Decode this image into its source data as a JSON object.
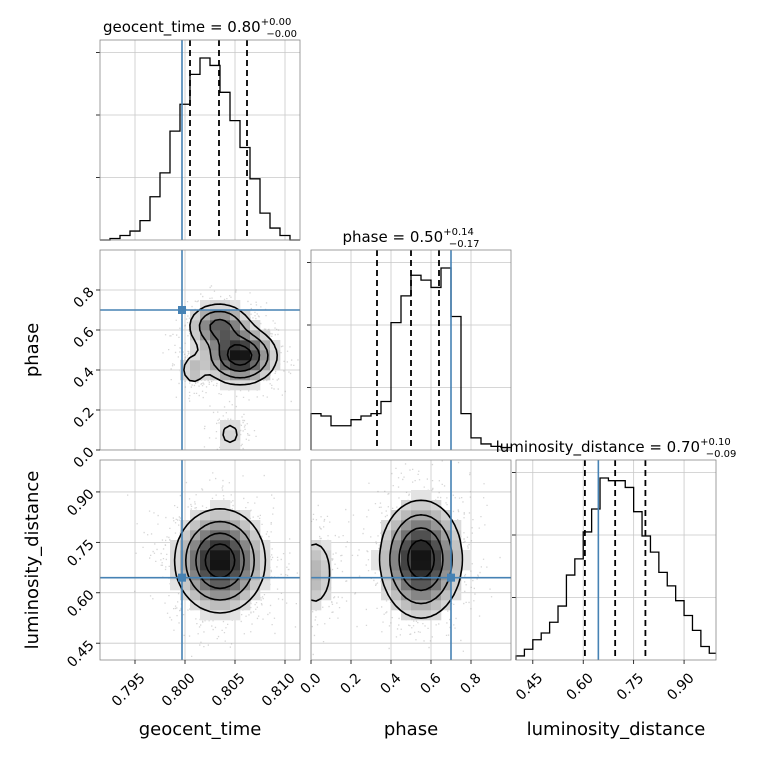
{
  "chart_data": {
    "type": "corner",
    "truths": {
      "geocent_time": 0.7997,
      "phase": 0.7,
      "luminosity_distance": 0.645
    },
    "axes": {
      "geocent_time": {
        "label": "geocent_time",
        "range": [
          0.7915,
          0.8115
        ],
        "ticks": [
          0.795,
          0.8,
          0.805,
          0.81
        ],
        "tick_labels": [
          "0.795",
          "0.800",
          "0.805",
          "0.810"
        ]
      },
      "phase": {
        "label": "phase",
        "range": [
          0.0,
          1.0
        ],
        "ticks": [
          0.0,
          0.2,
          0.4,
          0.6,
          0.8
        ],
        "tick_labels": [
          "0.0",
          "0.2",
          "0.4",
          "0.6",
          "0.8"
        ]
      },
      "luminosity_distance": {
        "label": "luminosity_distance",
        "range": [
          0.4,
          0.995
        ],
        "ticks": [
          0.45,
          0.6,
          0.75,
          0.9
        ],
        "tick_labels": [
          "0.45",
          "0.60",
          "0.75",
          "0.90"
        ]
      }
    },
    "diagonal": [
      {
        "param": "geocent_time",
        "title": {
          "name": "geocent_time",
          "value": "0.80",
          "plus": "+0.00",
          "minus": "−0.00"
        },
        "quantiles": [
          0.8005,
          0.8034,
          0.8062
        ],
        "bin_edges": [
          0.7915,
          0.7925,
          0.7935,
          0.7945,
          0.7955,
          0.7965,
          0.7975,
          0.7985,
          0.7995,
          0.8005,
          0.8015,
          0.8025,
          0.8035,
          0.8045,
          0.8055,
          0.8065,
          0.8075,
          0.8085,
          0.8095,
          0.8105,
          0.8115
        ],
        "counts": [
          0,
          1,
          3,
          6,
          13,
          29,
          45,
          73,
          91,
          111,
          122,
          117,
          99,
          80,
          62,
          41,
          18,
          8,
          3,
          0
        ]
      },
      {
        "param": "phase",
        "title": {
          "name": "phase",
          "value": "0.50",
          "plus": "+0.14",
          "minus": "−0.17"
        },
        "quantiles": [
          0.33,
          0.5,
          0.64
        ],
        "bin_edges": [
          0.0,
          0.05,
          0.1,
          0.15,
          0.2,
          0.25,
          0.3,
          0.35,
          0.4,
          0.45,
          0.5,
          0.55,
          0.6,
          0.65,
          0.7,
          0.75,
          0.8,
          0.85,
          0.9,
          0.95,
          1.0
        ],
        "counts": [
          30,
          28,
          20,
          20,
          25,
          28,
          30,
          40,
          105,
          127,
          144,
          140,
          134,
          150,
          110,
          30,
          10,
          5,
          3,
          2
        ]
      },
      {
        "param": "luminosity_distance",
        "title": {
          "name": "luminosity_distance",
          "value": "0.70",
          "plus": "+0.10",
          "minus": "−0.09"
        },
        "quantiles": [
          0.605,
          0.695,
          0.785
        ],
        "bin_edges": [
          0.4,
          0.425,
          0.45,
          0.475,
          0.5,
          0.525,
          0.55,
          0.575,
          0.6,
          0.625,
          0.65,
          0.675,
          0.7,
          0.725,
          0.75,
          0.775,
          0.8,
          0.825,
          0.85,
          0.875,
          0.9,
          0.925,
          0.95,
          0.975,
          0.995
        ],
        "counts": [
          3,
          8,
          15,
          20,
          28,
          40,
          63,
          75,
          95,
          112,
          135,
          133,
          133,
          128,
          110,
          92,
          80,
          65,
          55,
          44,
          33,
          22,
          10,
          5
        ]
      }
    ],
    "pairs": [
      {
        "x": "geocent_time",
        "y": "phase",
        "modes": [
          {
            "x": 0.8034,
            "y": 0.62,
            "sx": 0.0016,
            "sy": 0.06,
            "w": 1.0
          },
          {
            "x": 0.8055,
            "y": 0.47,
            "sx": 0.0018,
            "sy": 0.07,
            "w": 1.6
          },
          {
            "x": 0.8008,
            "y": 0.4,
            "sx": 0.0008,
            "sy": 0.05,
            "w": 0.35
          },
          {
            "x": 0.8045,
            "y": 0.08,
            "sx": 0.001,
            "sy": 0.06,
            "w": 0.25
          }
        ]
      },
      {
        "x": "geocent_time",
        "y": "luminosity_distance",
        "modes": [
          {
            "x": 0.8035,
            "y": 0.695,
            "sx": 0.0022,
            "sy": 0.075,
            "w": 1.0
          }
        ]
      },
      {
        "x": "phase",
        "y": "luminosity_distance",
        "modes": [
          {
            "x": 0.55,
            "y": 0.7,
            "sx": 0.1,
            "sy": 0.085,
            "w": 1.0
          },
          {
            "x": 0.02,
            "y": 0.66,
            "sx": 0.06,
            "sy": 0.07,
            "w": 0.25
          }
        ]
      }
    ],
    "truth_color": "#4682b4",
    "grid": true
  }
}
